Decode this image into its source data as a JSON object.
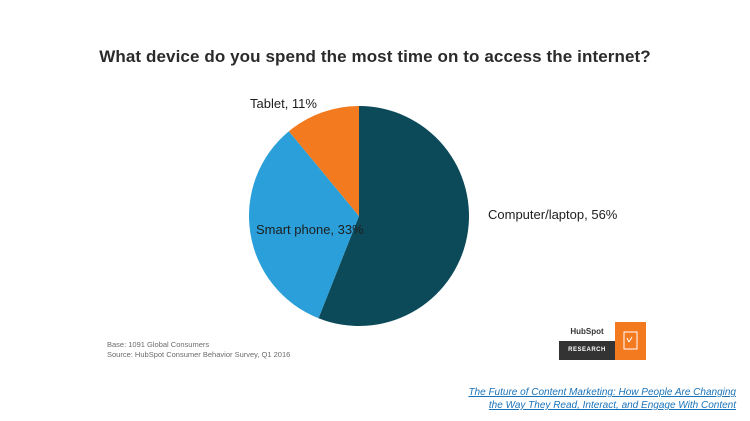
{
  "chart_data": {
    "type": "pie",
    "title": "What device do you spend the most time on to access the internet?",
    "slices": [
      {
        "label": "Computer/laptop, 56%",
        "value": 56,
        "color": "#0c4a5a"
      },
      {
        "label": "Smart phone, 33%",
        "value": 33,
        "color": "#2a9fd9"
      },
      {
        "label": "Tablet, 11%",
        "value": 11,
        "color": "#f47a20"
      }
    ]
  },
  "footer": {
    "base": "Base: 1091 Global Consumers",
    "source": "Source: HubSpot Consumer Behavior Survey, Q1 2016"
  },
  "logo": {
    "brand": "HubSpot",
    "research": "RESEARCH"
  },
  "caption": {
    "line1": "The Future of Content Marketing: How People Are Changing",
    "line2": "the Way They Read, Interact, and Engage With Content"
  }
}
